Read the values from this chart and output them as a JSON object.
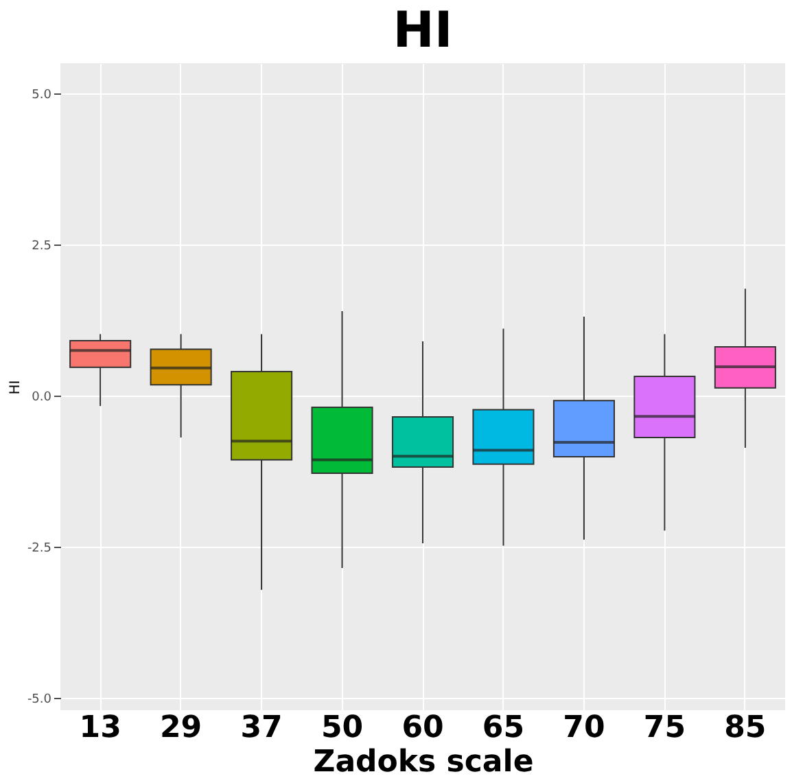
{
  "chart_data": {
    "type": "box",
    "title": "HI",
    "xlabel": "Zadoks scale",
    "ylabel": "HI",
    "categories": [
      "13",
      "29",
      "37",
      "50",
      "60",
      "65",
      "70",
      "75",
      "85"
    ],
    "colors": [
      "#f8766d",
      "#d39200",
      "#93aa00",
      "#00ba38",
      "#00c19f",
      "#00b9e3",
      "#619cff",
      "#db72fb",
      "#ff61c3"
    ],
    "boxes": [
      {
        "low": -0.17,
        "q1": 0.47,
        "median": 0.75,
        "q3": 0.91,
        "high": 1.02
      },
      {
        "low": -0.69,
        "q1": 0.18,
        "median": 0.46,
        "q3": 0.77,
        "high": 1.02
      },
      {
        "low": -3.21,
        "q1": -1.06,
        "median": -0.75,
        "q3": 0.4,
        "high": 1.02
      },
      {
        "low": -2.85,
        "q1": -1.28,
        "median": -1.06,
        "q3": -0.19,
        "high": 1.4
      },
      {
        "low": -2.44,
        "q1": -1.18,
        "median": -1.0,
        "q3": -0.35,
        "high": 0.9
      },
      {
        "low": -2.48,
        "q1": -1.13,
        "median": -0.9,
        "q3": -0.23,
        "high": 1.11
      },
      {
        "low": -2.38,
        "q1": -1.01,
        "median": -0.77,
        "q3": -0.08,
        "high": 1.31
      },
      {
        "low": -2.23,
        "q1": -0.69,
        "median": -0.34,
        "q3": 0.32,
        "high": 1.02
      },
      {
        "low": -0.86,
        "q1": 0.13,
        "median": 0.48,
        "q3": 0.81,
        "high": 1.77
      }
    ],
    "ylim": [
      -5.2,
      5.5
    ],
    "yticks": [
      {
        "value": -5,
        "label": "-5.0"
      },
      {
        "value": -2.5,
        "label": "-2.5"
      },
      {
        "value": 0,
        "label": "0.0"
      },
      {
        "value": 2.5,
        "label": "2.5"
      },
      {
        "value": 5,
        "label": "5.0"
      }
    ],
    "grid": true,
    "legend": false
  }
}
